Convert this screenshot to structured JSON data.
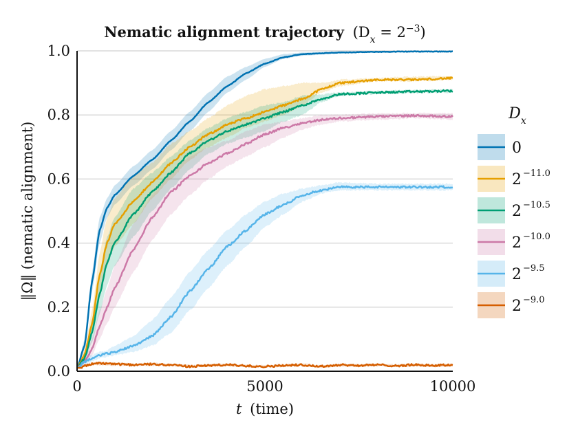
{
  "chart_data": {
    "type": "line",
    "title": "Nematic alignment trajectory",
    "title_math": "(D",
    "title_math_sub": "x",
    "title_math_eq": " = 2",
    "title_math_sup": "−3",
    "title_math_close": ")",
    "xlabel_var": "t",
    "xlabel": "(time)",
    "ylabel": "‖Ω‖ (nematic alignment)",
    "xlim": [
      0,
      10000
    ],
    "ylim": [
      0,
      1.0
    ],
    "x_ticks": [
      "0",
      "5000",
      "10000"
    ],
    "y_ticks": [
      "0.0",
      "0.2",
      "0.4",
      "0.6",
      "0.8",
      "1.0"
    ],
    "grid": "horizontal",
    "legend": {
      "title": "D",
      "title_sub": "x",
      "placement": "right"
    },
    "series": [
      {
        "name": "0",
        "name_base": "0",
        "name_sup": "",
        "color": "#0072b2",
        "x": [
          0,
          200,
          400,
          600,
          800,
          1000,
          1500,
          2000,
          2500,
          3000,
          3500,
          4000,
          4500,
          5000,
          5500,
          6000,
          7000,
          8000,
          9000,
          10000
        ],
        "y": [
          0.01,
          0.08,
          0.28,
          0.44,
          0.51,
          0.55,
          0.61,
          0.66,
          0.72,
          0.78,
          0.84,
          0.89,
          0.93,
          0.96,
          0.98,
          0.99,
          0.995,
          0.997,
          0.998,
          0.998
        ],
        "lower": [
          0.01,
          0.07,
          0.25,
          0.4,
          0.48,
          0.52,
          0.58,
          0.63,
          0.69,
          0.75,
          0.81,
          0.87,
          0.91,
          0.95,
          0.975,
          0.985,
          0.993,
          0.996,
          0.997,
          0.997
        ],
        "upper": [
          0.01,
          0.1,
          0.31,
          0.48,
          0.54,
          0.58,
          0.64,
          0.69,
          0.75,
          0.81,
          0.87,
          0.92,
          0.95,
          0.975,
          0.99,
          0.995,
          0.998,
          0.999,
          0.999,
          0.999
        ]
      },
      {
        "name": "2^-11.0",
        "name_base": "2",
        "name_sup": "−11.0",
        "color": "#e69f00",
        "x": [
          0,
          200,
          400,
          600,
          800,
          1000,
          1500,
          2000,
          2500,
          3000,
          3500,
          4000,
          4500,
          5000,
          5500,
          6000,
          6500,
          7000,
          8000,
          9000,
          10000
        ],
        "y": [
          0.01,
          0.05,
          0.15,
          0.3,
          0.4,
          0.46,
          0.53,
          0.59,
          0.65,
          0.7,
          0.74,
          0.77,
          0.79,
          0.81,
          0.83,
          0.85,
          0.88,
          0.9,
          0.91,
          0.91,
          0.915
        ],
        "lower": [
          0.01,
          0.04,
          0.12,
          0.24,
          0.33,
          0.39,
          0.46,
          0.54,
          0.6,
          0.66,
          0.7,
          0.73,
          0.76,
          0.78,
          0.8,
          0.83,
          0.87,
          0.89,
          0.905,
          0.905,
          0.91
        ],
        "upper": [
          0.01,
          0.07,
          0.19,
          0.37,
          0.48,
          0.54,
          0.61,
          0.65,
          0.71,
          0.75,
          0.79,
          0.83,
          0.86,
          0.88,
          0.89,
          0.9,
          0.9,
          0.91,
          0.915,
          0.92,
          0.92
        ]
      },
      {
        "name": "2^-10.5",
        "name_base": "2",
        "name_sup": "−10.5",
        "color": "#009e73",
        "x": [
          0,
          200,
          400,
          600,
          800,
          1000,
          1500,
          2000,
          2500,
          3000,
          3500,
          4000,
          4500,
          5000,
          5500,
          6000,
          6500,
          7000,
          8000,
          9000,
          10000
        ],
        "y": [
          0.01,
          0.04,
          0.12,
          0.24,
          0.34,
          0.4,
          0.49,
          0.56,
          0.62,
          0.68,
          0.72,
          0.75,
          0.77,
          0.79,
          0.81,
          0.83,
          0.85,
          0.865,
          0.87,
          0.873,
          0.875
        ],
        "lower": [
          0.01,
          0.03,
          0.09,
          0.18,
          0.27,
          0.33,
          0.42,
          0.5,
          0.57,
          0.63,
          0.68,
          0.71,
          0.73,
          0.75,
          0.78,
          0.8,
          0.84,
          0.86,
          0.865,
          0.868,
          0.87
        ],
        "upper": [
          0.01,
          0.06,
          0.16,
          0.31,
          0.42,
          0.48,
          0.57,
          0.62,
          0.67,
          0.72,
          0.76,
          0.79,
          0.81,
          0.83,
          0.84,
          0.86,
          0.865,
          0.87,
          0.875,
          0.878,
          0.88
        ]
      },
      {
        "name": "2^-10.0",
        "name_base": "2",
        "name_sup": "−10.0",
        "color": "#cc79a7",
        "x": [
          0,
          200,
          400,
          600,
          800,
          1000,
          1500,
          2000,
          2500,
          3000,
          3500,
          4000,
          4500,
          5000,
          5500,
          6000,
          6500,
          7000,
          8000,
          9000,
          10000
        ],
        "y": [
          0.01,
          0.03,
          0.07,
          0.14,
          0.2,
          0.26,
          0.38,
          0.48,
          0.56,
          0.61,
          0.65,
          0.68,
          0.71,
          0.74,
          0.76,
          0.775,
          0.785,
          0.79,
          0.795,
          0.798,
          0.795
        ],
        "lower": [
          0.01,
          0.02,
          0.05,
          0.1,
          0.15,
          0.2,
          0.31,
          0.41,
          0.49,
          0.55,
          0.6,
          0.64,
          0.67,
          0.7,
          0.73,
          0.755,
          0.77,
          0.78,
          0.785,
          0.79,
          0.785
        ],
        "upper": [
          0.01,
          0.04,
          0.1,
          0.19,
          0.26,
          0.33,
          0.46,
          0.55,
          0.62,
          0.67,
          0.7,
          0.72,
          0.75,
          0.77,
          0.78,
          0.79,
          0.8,
          0.8,
          0.805,
          0.806,
          0.805
        ]
      },
      {
        "name": "2^-9.5",
        "name_base": "2",
        "name_sup": "−9.5",
        "color": "#56b4e9",
        "x": [
          0,
          200,
          400,
          600,
          800,
          1000,
          1500,
          2000,
          2500,
          3000,
          3500,
          4000,
          4500,
          5000,
          5500,
          6000,
          6500,
          7000,
          8000,
          9000,
          10000
        ],
        "y": [
          0.01,
          0.03,
          0.04,
          0.05,
          0.055,
          0.06,
          0.08,
          0.11,
          0.17,
          0.25,
          0.32,
          0.39,
          0.44,
          0.49,
          0.52,
          0.55,
          0.565,
          0.575,
          0.575,
          0.575,
          0.575
        ],
        "lower": [
          0.01,
          0.02,
          0.03,
          0.04,
          0.045,
          0.05,
          0.06,
          0.08,
          0.12,
          0.19,
          0.26,
          0.33,
          0.39,
          0.45,
          0.49,
          0.53,
          0.555,
          0.565,
          0.565,
          0.565,
          0.565
        ],
        "upper": [
          0.01,
          0.04,
          0.05,
          0.06,
          0.065,
          0.08,
          0.11,
          0.16,
          0.23,
          0.31,
          0.38,
          0.44,
          0.49,
          0.53,
          0.555,
          0.57,
          0.58,
          0.59,
          0.585,
          0.585,
          0.585
        ]
      },
      {
        "name": "2^-9.0",
        "name_base": "2",
        "name_sup": "−9.0",
        "color": "#d55e00",
        "x": [
          0,
          500,
          1000,
          1500,
          2000,
          2500,
          3000,
          3500,
          4000,
          4500,
          5000,
          5500,
          6000,
          6500,
          7000,
          7500,
          8000,
          8500,
          9000,
          9500,
          10000
        ],
        "y": [
          0.01,
          0.025,
          0.022,
          0.02,
          0.022,
          0.02,
          0.015,
          0.018,
          0.02,
          0.017,
          0.015,
          0.018,
          0.02,
          0.015,
          0.02,
          0.018,
          0.02,
          0.017,
          0.02,
          0.018,
          0.02
        ],
        "lower": [
          0.01,
          0.02,
          0.018,
          0.016,
          0.018,
          0.016,
          0.012,
          0.014,
          0.016,
          0.013,
          0.011,
          0.014,
          0.016,
          0.011,
          0.016,
          0.014,
          0.016,
          0.013,
          0.016,
          0.014,
          0.016
        ],
        "upper": [
          0.01,
          0.03,
          0.027,
          0.024,
          0.026,
          0.024,
          0.019,
          0.022,
          0.024,
          0.021,
          0.019,
          0.022,
          0.024,
          0.019,
          0.024,
          0.022,
          0.024,
          0.021,
          0.024,
          0.022,
          0.024
        ]
      }
    ]
  }
}
